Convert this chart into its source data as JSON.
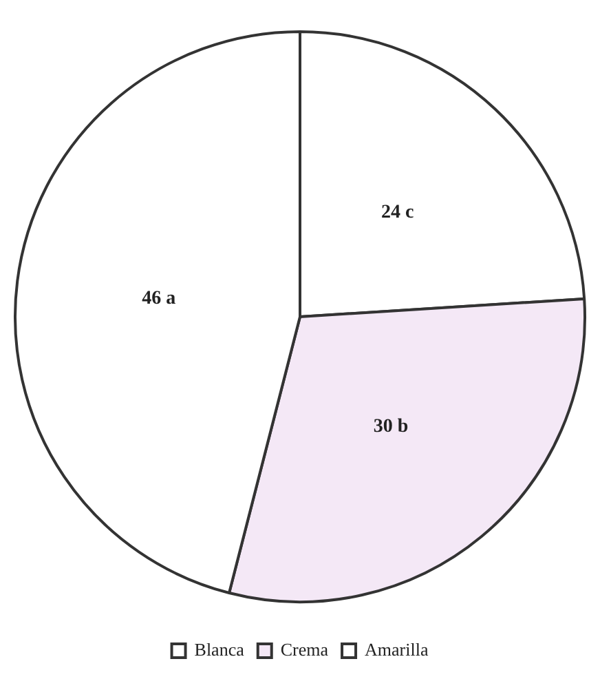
{
  "chart_data": {
    "type": "pie",
    "categories": [
      "Blanca",
      "Crema",
      "Amarilla"
    ],
    "values": [
      24,
      30,
      46
    ],
    "colors": [
      "#ffffff",
      "#f4e8f6",
      "#ffffff"
    ],
    "value_labels": [
      "24 c",
      "30 b",
      "46 a"
    ],
    "legend": "bottom"
  }
}
